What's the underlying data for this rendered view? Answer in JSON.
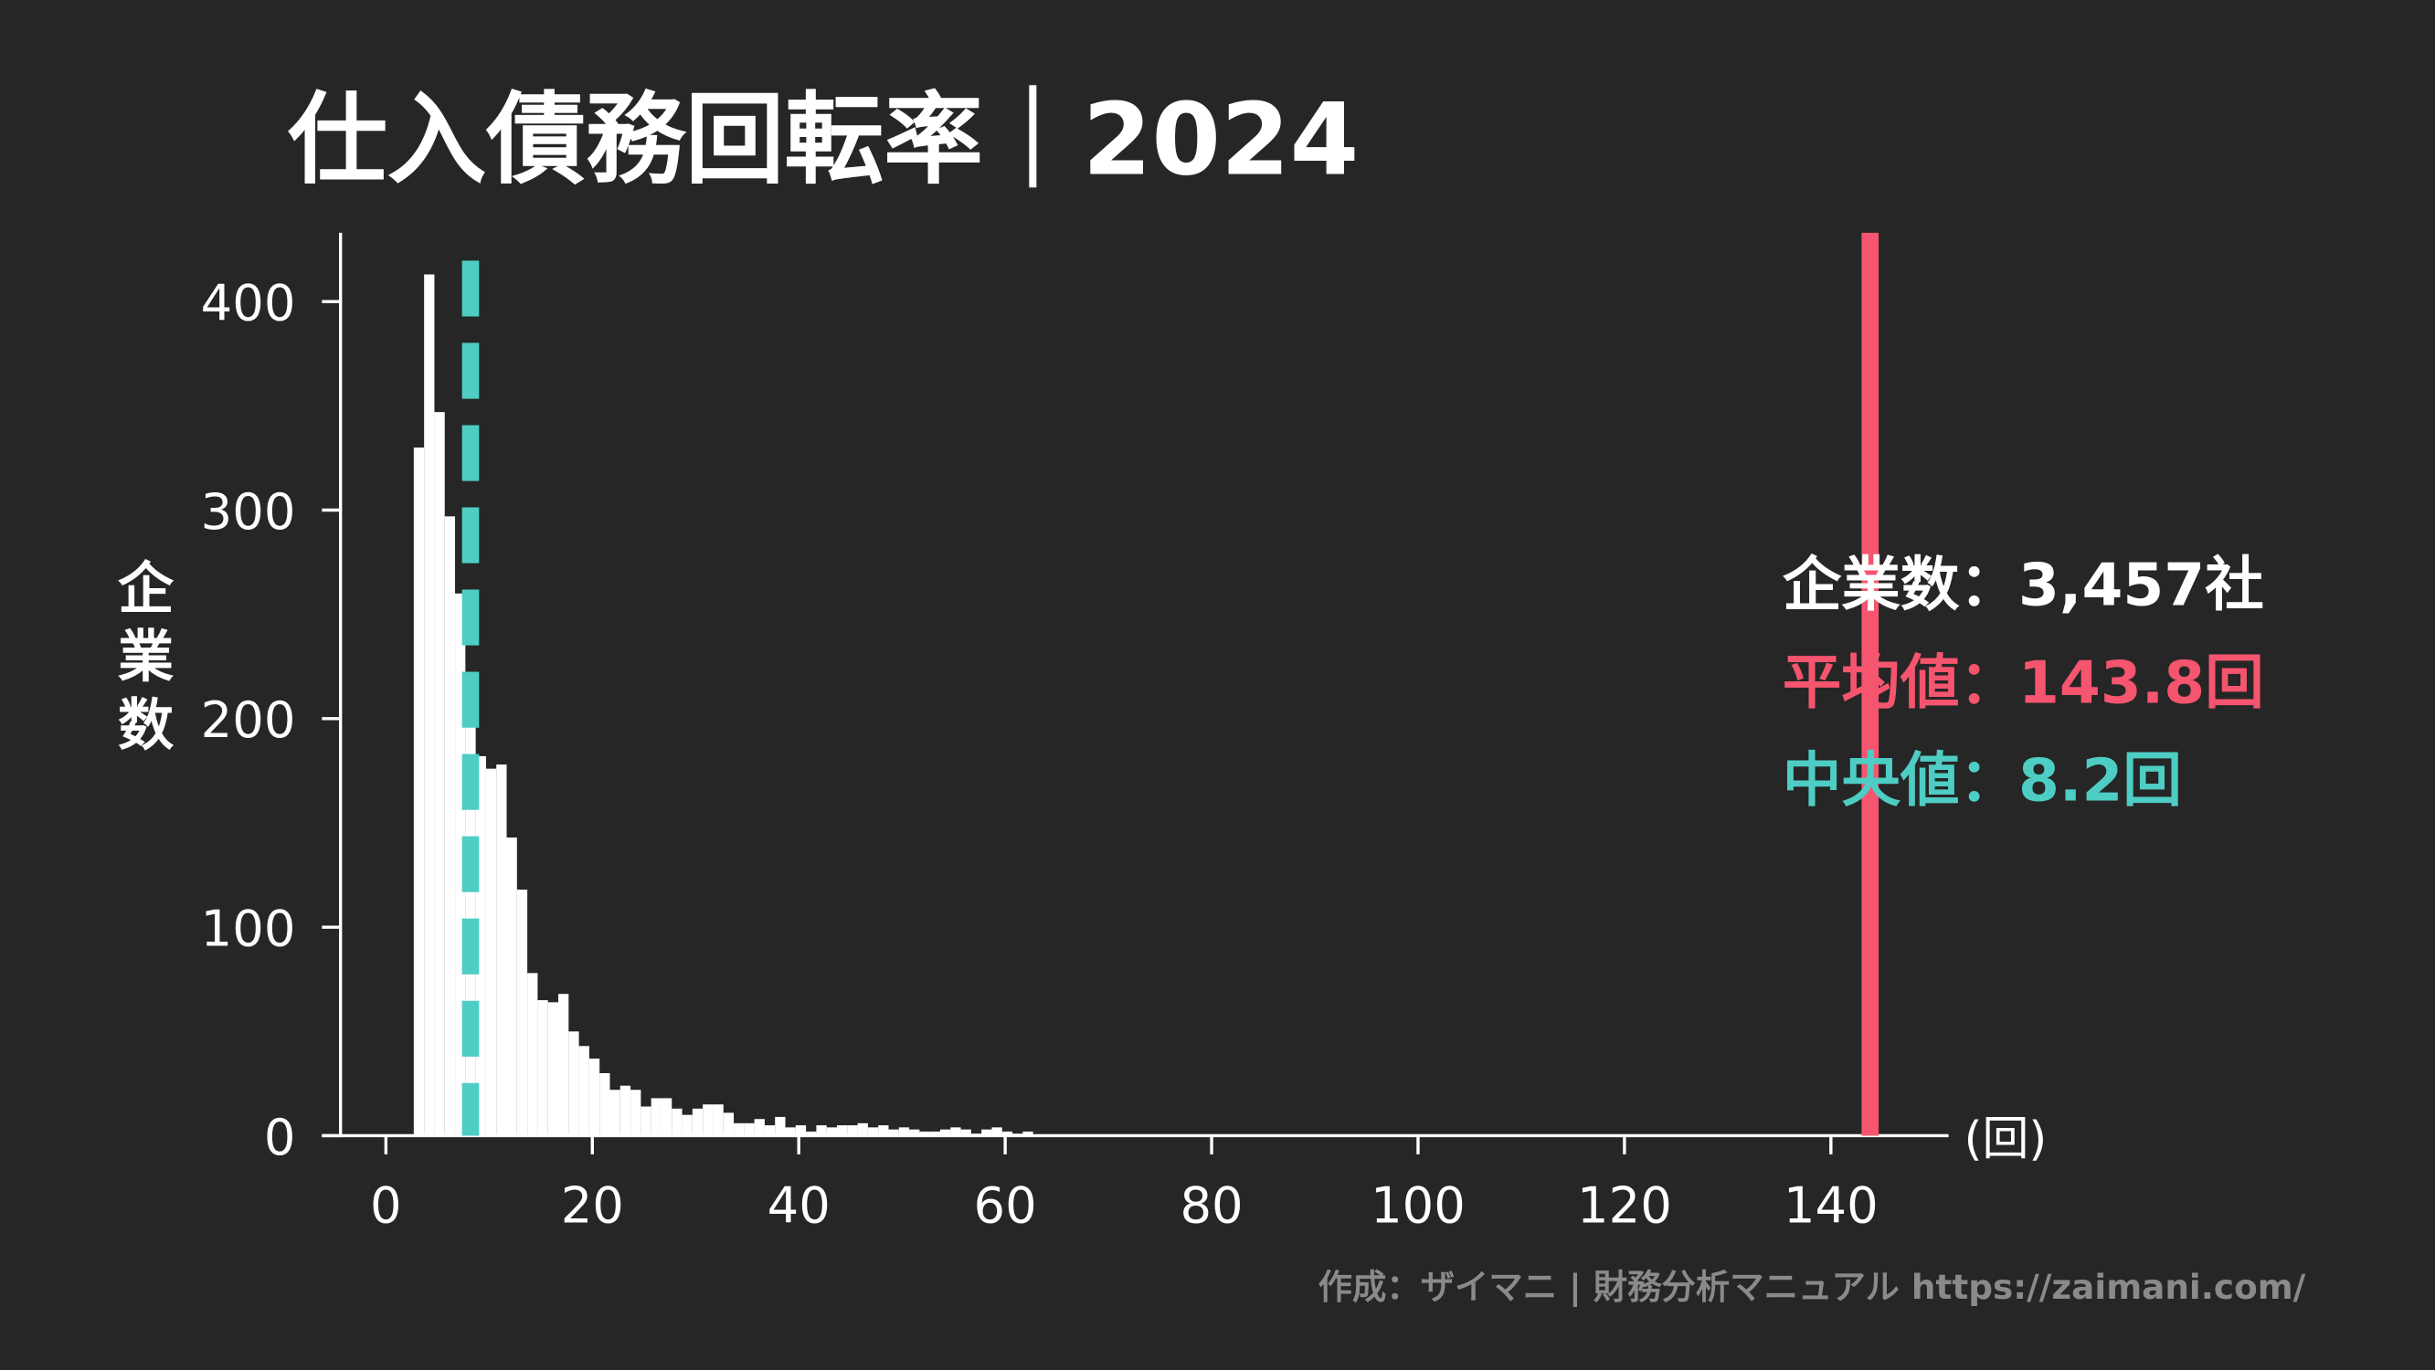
{
  "chart_data": {
    "type": "histogram",
    "title": "仕入債務回転率｜2024",
    "ylabel": "企業数",
    "xlabel": "(回)",
    "bins": [
      2.7,
      3.7,
      4.7,
      5.7,
      6.7,
      7.7,
      8.7,
      9.7,
      10.7,
      11.7,
      12.7,
      13.7,
      14.7,
      15.7,
      16.7,
      17.7,
      18.7,
      19.7,
      20.7,
      21.7,
      22.7,
      23.7,
      24.7,
      25.7,
      26.7,
      27.7,
      28.7,
      29.7,
      30.7,
      31.7,
      32.7,
      33.7,
      34.7,
      35.7,
      36.7,
      37.7,
      38.7,
      39.7,
      40.7,
      41.7,
      42.7,
      43.7,
      44.7,
      45.7,
      46.7,
      47.7,
      48.7,
      49.7,
      50.7,
      51.7,
      52.7,
      53.7,
      54.7,
      55.7,
      56.7,
      57.7,
      58.7,
      59.7,
      60.7,
      61.7,
      62.7
    ],
    "counts": [
      330,
      413,
      347,
      297,
      260,
      199,
      182,
      176,
      178,
      143,
      118,
      78,
      65,
      64,
      68,
      50,
      43,
      37,
      30,
      22,
      24,
      22,
      14,
      18,
      18,
      13,
      10,
      13,
      15,
      15,
      11,
      6,
      6,
      8,
      5,
      9,
      4,
      5,
      2,
      5,
      4,
      5,
      5,
      6,
      4,
      5,
      3,
      4,
      3,
      2,
      2,
      3,
      4,
      3,
      1,
      3,
      4,
      2,
      1,
      2
    ],
    "color": "#ffffff",
    "mean": 143.8,
    "mean_color": "#f5556e",
    "median": 8.2,
    "median_color": "#4ecdc4",
    "annotations": [
      {
        "text": "企業数：3,457社",
        "color": "#ffffff"
      },
      {
        "text": "平均値：143.8回",
        "color": "#f5556e"
      },
      {
        "text": "中央値：8.2回",
        "color": "#4ecdc4"
      }
    ],
    "footer": "作成：ザイマニ | 財務分析マニュアル https://zaimani.com/",
    "xlim": [
      -6.2,
      151.4
    ],
    "ylim": [
      0,
      433
    ],
    "xticks": [
      0,
      20,
      40,
      60,
      80,
      100,
      120,
      140
    ],
    "yticks": [
      0,
      100,
      200,
      300,
      400
    ]
  }
}
